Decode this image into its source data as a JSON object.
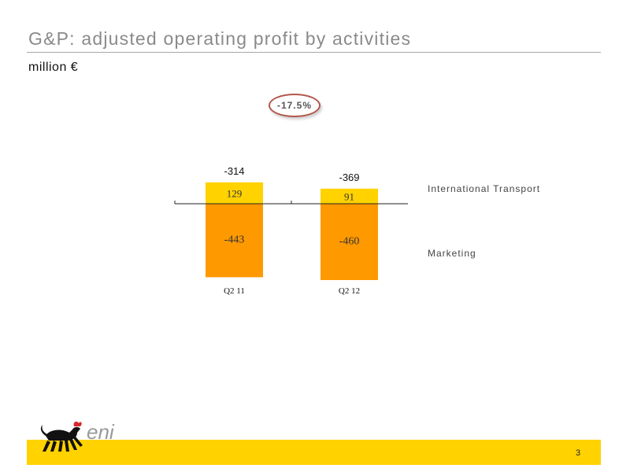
{
  "header": {
    "title": "G&P: adjusted operating profit by activities",
    "unit": "million €"
  },
  "badge": "-17.5%",
  "chart_data": {
    "type": "bar",
    "stacked": true,
    "categories": [
      "Q2 11",
      "Q2 12"
    ],
    "totals": [
      "-314",
      "-369"
    ],
    "series": [
      {
        "name": "International Transport",
        "values": [
          129,
          91
        ],
        "color": "#ffd200"
      },
      {
        "name": "Marketing",
        "values": [
          -443,
          -460
        ],
        "color": "#ff9900"
      }
    ]
  },
  "footer": {
    "page_number": "3",
    "logo_text": "eni"
  }
}
